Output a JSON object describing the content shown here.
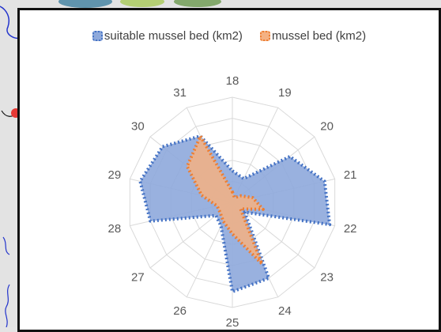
{
  "chart_data": {
    "type": "radar",
    "categories": [
      "18",
      "19",
      "20",
      "21",
      "22",
      "23",
      "24",
      "25",
      "26",
      "27",
      "28",
      "29",
      "30",
      "31"
    ],
    "series": [
      {
        "name": "suitable mussel bed  (km2)",
        "values": [
          0.3,
          0.25,
          0.7,
          0.9,
          0.95,
          0.15,
          0.8,
          0.85,
          0.25,
          0.2,
          0.8,
          0.9,
          0.85,
          0.7
        ],
        "fill": "#8ea9db",
        "stroke": "#4472c4"
      },
      {
        "name": "mussel bed (km2)",
        "values": [
          0.1,
          0.05,
          0.1,
          0.2,
          0.3,
          0.1,
          0.65,
          0.3,
          0.2,
          0.15,
          0.15,
          0.3,
          0.55,
          0.7
        ],
        "fill": "#f4b183",
        "stroke": "#ed7d31"
      }
    ],
    "rings": 5,
    "grid": true,
    "legend": "top"
  }
}
